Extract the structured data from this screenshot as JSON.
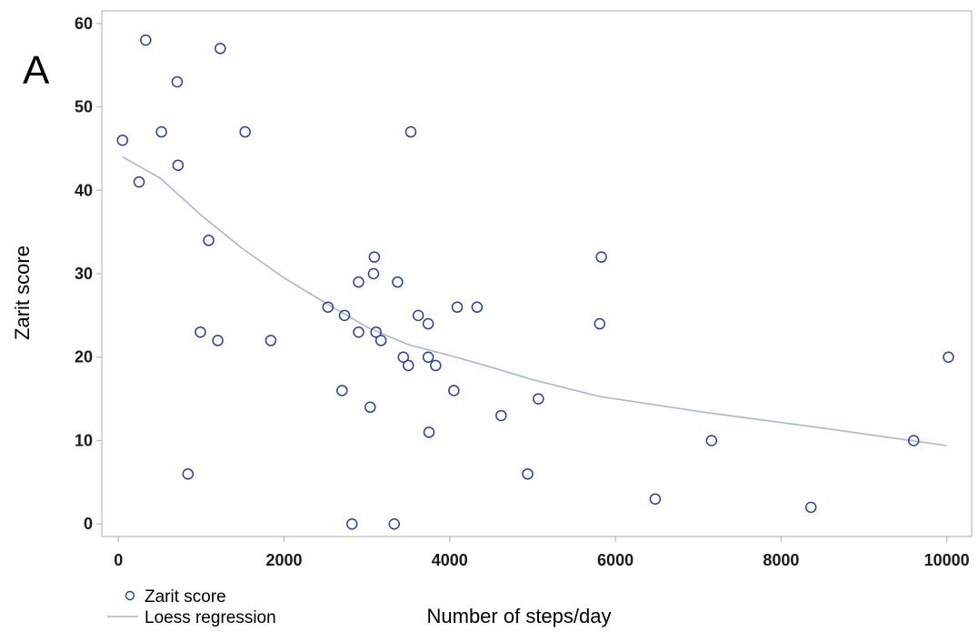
{
  "panel_label": "A",
  "chart_data": {
    "type": "scatter",
    "title": "",
    "xlabel": "Number of steps/day",
    "ylabel": "Zarit score",
    "xlim": [
      -200,
      10300
    ],
    "ylim": [
      -1.5,
      61.5
    ],
    "xticks": [
      0,
      2000,
      4000,
      6000,
      8000,
      10000
    ],
    "xtick_labels": [
      "0",
      "2000",
      "4000",
      "6000",
      "8000",
      "10000"
    ],
    "yticks": [
      0,
      10,
      20,
      30,
      40,
      50,
      60
    ],
    "ytick_labels": [
      "0",
      "10",
      "20",
      "30",
      "40",
      "50",
      "60"
    ],
    "grid": false,
    "legend_position": "bottom-left, below plot",
    "colors": {
      "points": "#2b3f9e",
      "line": "#a7b7cc",
      "frame": "#b8b8b8"
    },
    "series": [
      {
        "name": "Zarit score",
        "kind": "scatter",
        "marker": "hollow-circle",
        "points": [
          [
            50,
            46
          ],
          [
            250,
            41
          ],
          [
            330,
            58
          ],
          [
            520,
            47
          ],
          [
            710,
            53
          ],
          [
            720,
            43
          ],
          [
            840,
            6
          ],
          [
            990,
            23
          ],
          [
            1090,
            34
          ],
          [
            1200,
            22
          ],
          [
            1230,
            57
          ],
          [
            1530,
            47
          ],
          [
            1840,
            22
          ],
          [
            2530,
            26
          ],
          [
            2700,
            16
          ],
          [
            2730,
            25
          ],
          [
            2820,
            0
          ],
          [
            2900,
            29
          ],
          [
            2900,
            23
          ],
          [
            3040,
            14
          ],
          [
            3080,
            30
          ],
          [
            3090,
            32
          ],
          [
            3110,
            23
          ],
          [
            3170,
            22
          ],
          [
            3330,
            0
          ],
          [
            3370,
            29
          ],
          [
            3440,
            20
          ],
          [
            3500,
            19
          ],
          [
            3530,
            47
          ],
          [
            3620,
            25
          ],
          [
            3740,
            24
          ],
          [
            3740,
            20
          ],
          [
            3750,
            11
          ],
          [
            3830,
            19
          ],
          [
            4050,
            16
          ],
          [
            4090,
            26
          ],
          [
            4330,
            26
          ],
          [
            4620,
            13
          ],
          [
            4940,
            6
          ],
          [
            5070,
            15
          ],
          [
            5810,
            24
          ],
          [
            5830,
            32
          ],
          [
            6480,
            3
          ],
          [
            7160,
            10
          ],
          [
            8360,
            2
          ],
          [
            9600,
            10
          ],
          [
            10020,
            20
          ]
        ]
      },
      {
        "name": "Loess regression",
        "kind": "line",
        "points": [
          [
            50,
            44
          ],
          [
            500,
            41.5
          ],
          [
            1000,
            37
          ],
          [
            1500,
            33
          ],
          [
            2000,
            29.5
          ],
          [
            2500,
            26.5
          ],
          [
            3000,
            23.6
          ],
          [
            3500,
            21.5
          ],
          [
            4000,
            20.2
          ],
          [
            4500,
            18.8
          ],
          [
            5000,
            17.3
          ],
          [
            5800,
            15.3
          ],
          [
            7000,
            13.5
          ],
          [
            8500,
            11.5
          ],
          [
            10000,
            9.4
          ]
        ]
      }
    ]
  }
}
